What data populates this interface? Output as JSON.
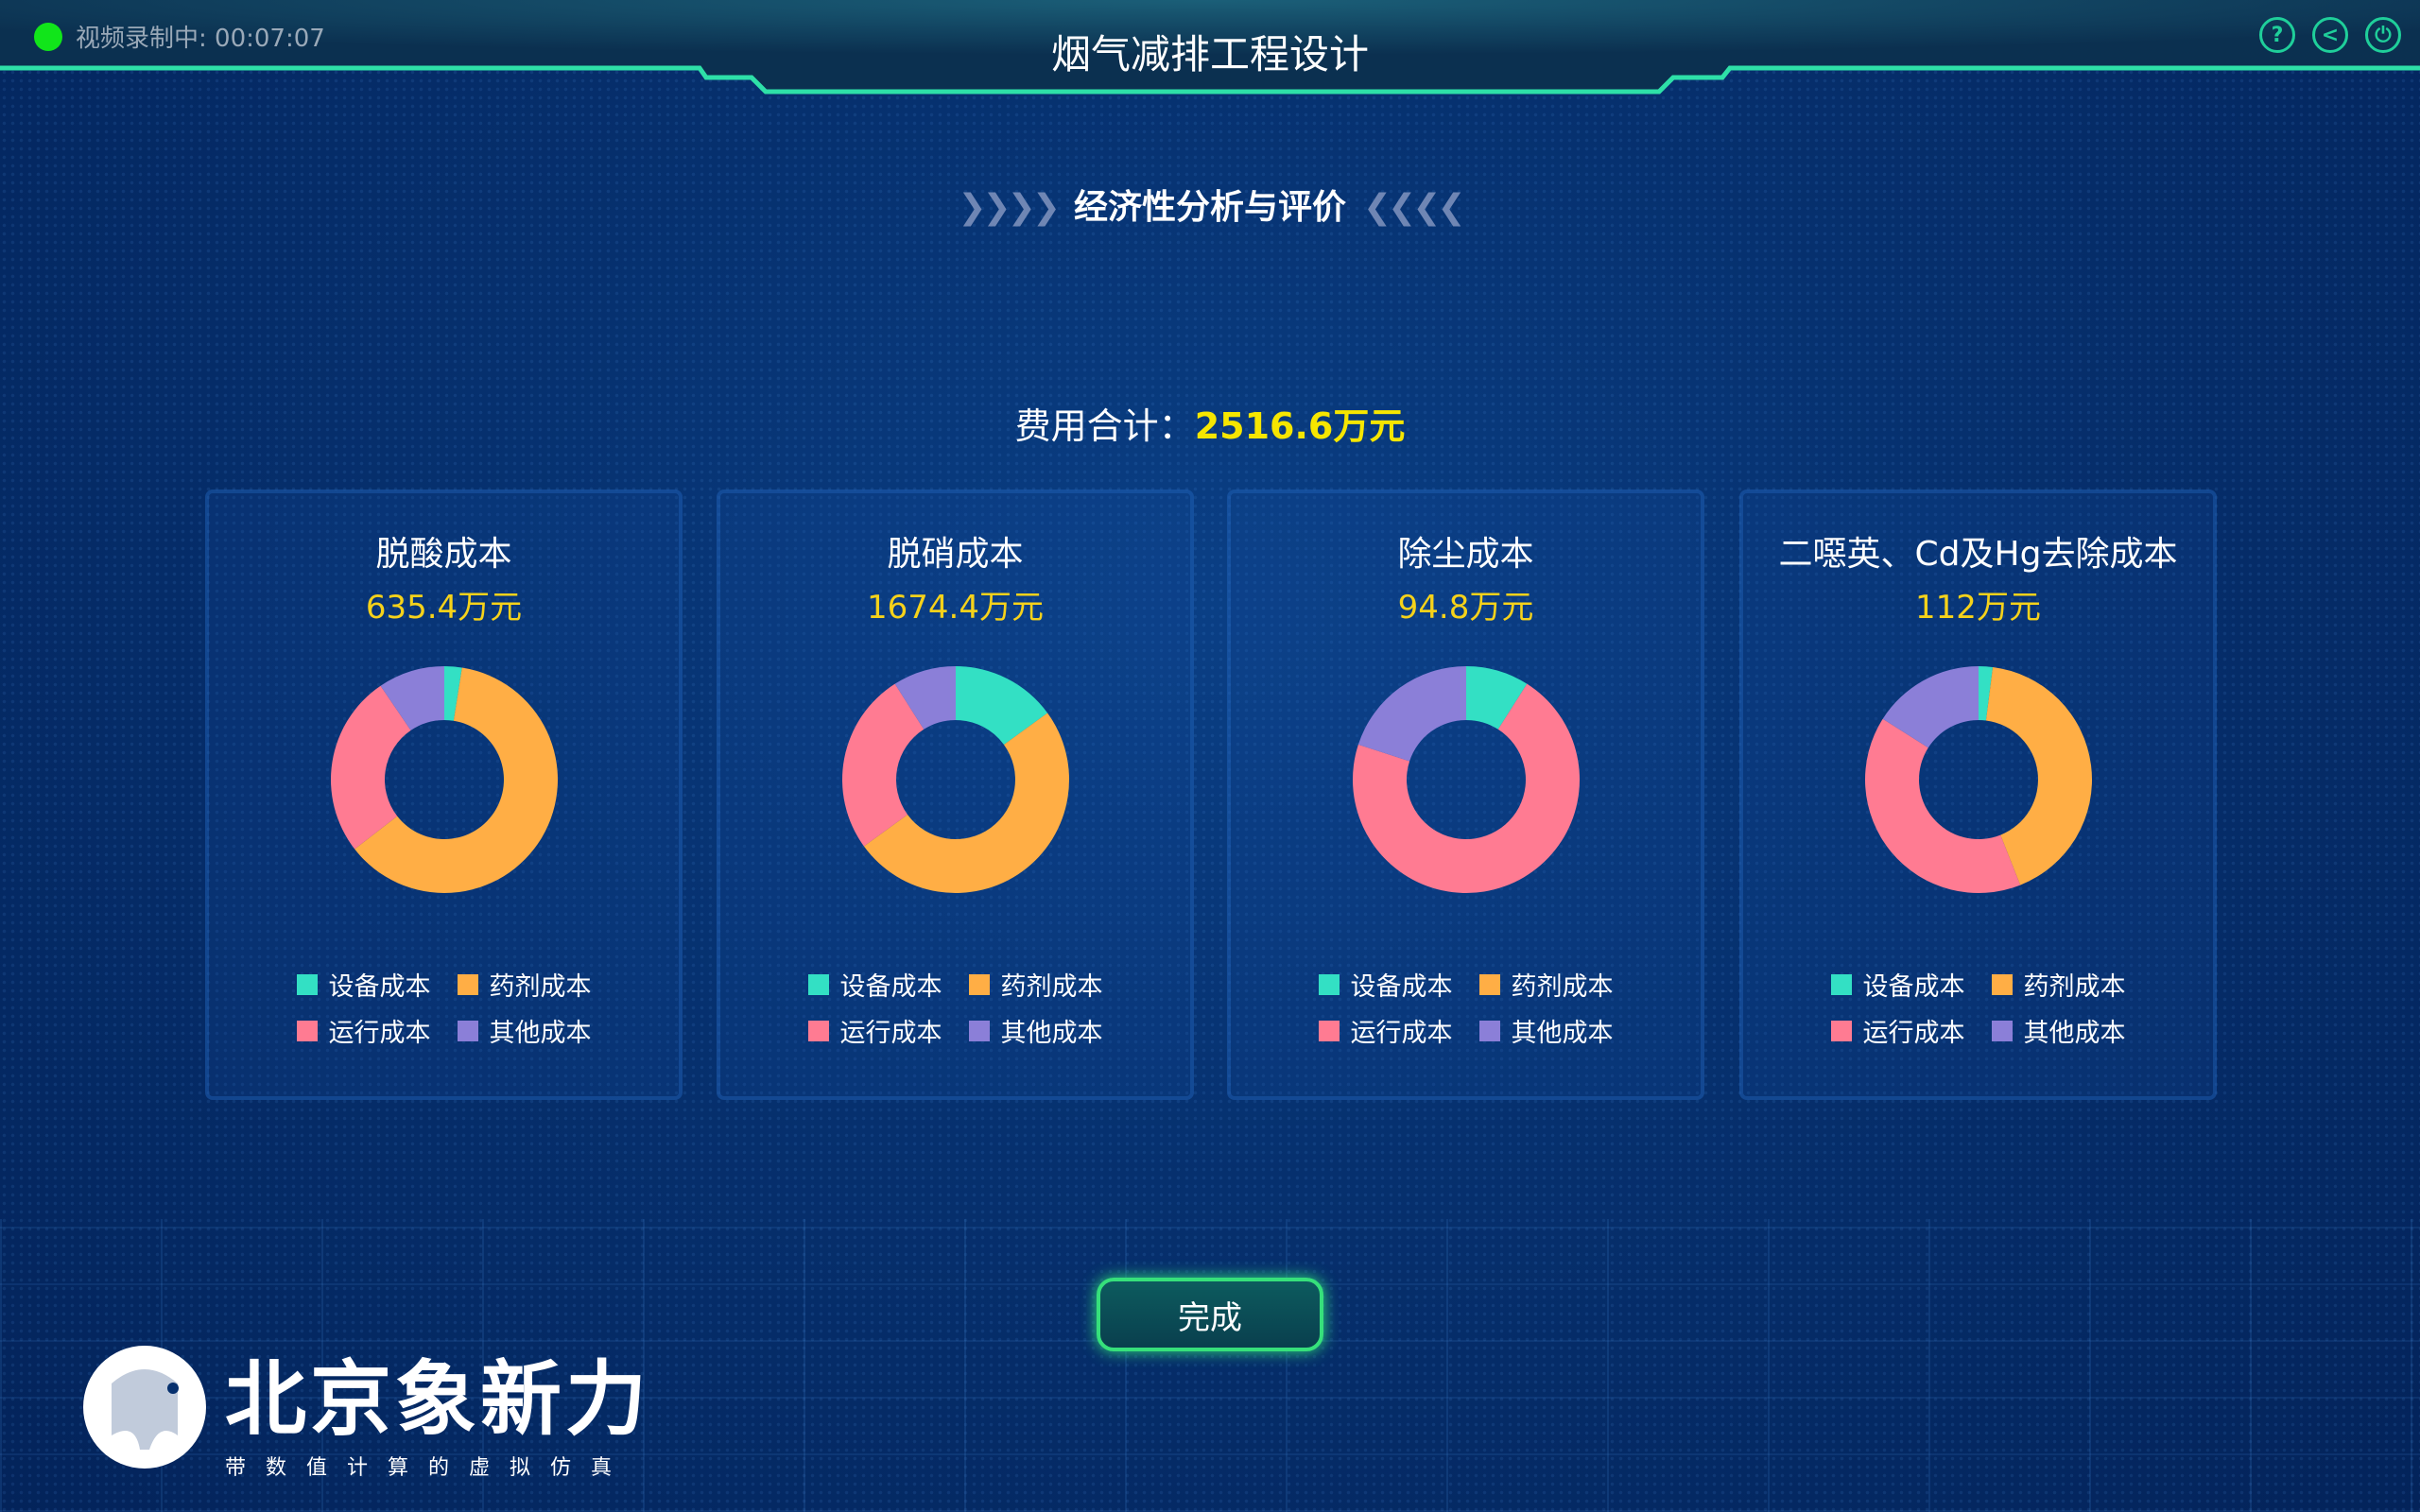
{
  "header": {
    "recording": "视频录制中: 00:07:07",
    "title": "烟气减排工程设计",
    "icons": [
      "help-icon",
      "back-icon",
      "power-icon"
    ]
  },
  "subtitle": "经济性分析与评价",
  "total": {
    "label": "费用合计：",
    "value": "2516.6万元"
  },
  "legend_labels": [
    "设备成本",
    "药剂成本",
    "运行成本",
    "其他成本"
  ],
  "colors": {
    "设备成本": "#33e0c4",
    "药剂成本": "#ffae45",
    "运行成本": "#ff7b92",
    "其他成本": "#8b7fd8"
  },
  "chart_data": [
    {
      "type": "pie",
      "title": "脱酸成本",
      "value": "635.4万元",
      "categories": [
        "设备成本",
        "药剂成本",
        "运行成本",
        "其他成本"
      ],
      "values_percent": [
        2.5,
        62,
        26,
        9.5
      ]
    },
    {
      "type": "pie",
      "title": "脱硝成本",
      "value": "1674.4万元",
      "categories": [
        "设备成本",
        "药剂成本",
        "运行成本",
        "其他成本"
      ],
      "values_percent": [
        15,
        50,
        26,
        9
      ]
    },
    {
      "type": "pie",
      "title": "除尘成本",
      "value": "94.8万元",
      "categories": [
        "设备成本",
        "药剂成本",
        "运行成本",
        "其他成本"
      ],
      "values_percent": [
        9,
        0,
        71,
        20
      ]
    },
    {
      "type": "pie",
      "title": "二噁英、Cd及Hg去除成本",
      "value": "112万元",
      "categories": [
        "设备成本",
        "药剂成本",
        "运行成本",
        "其他成本"
      ],
      "values_percent": [
        2,
        42,
        40,
        16
      ]
    }
  ],
  "done_label": "完成",
  "logo": {
    "name": "北京象新力",
    "tagline": "带数值计算的虚拟仿真"
  }
}
